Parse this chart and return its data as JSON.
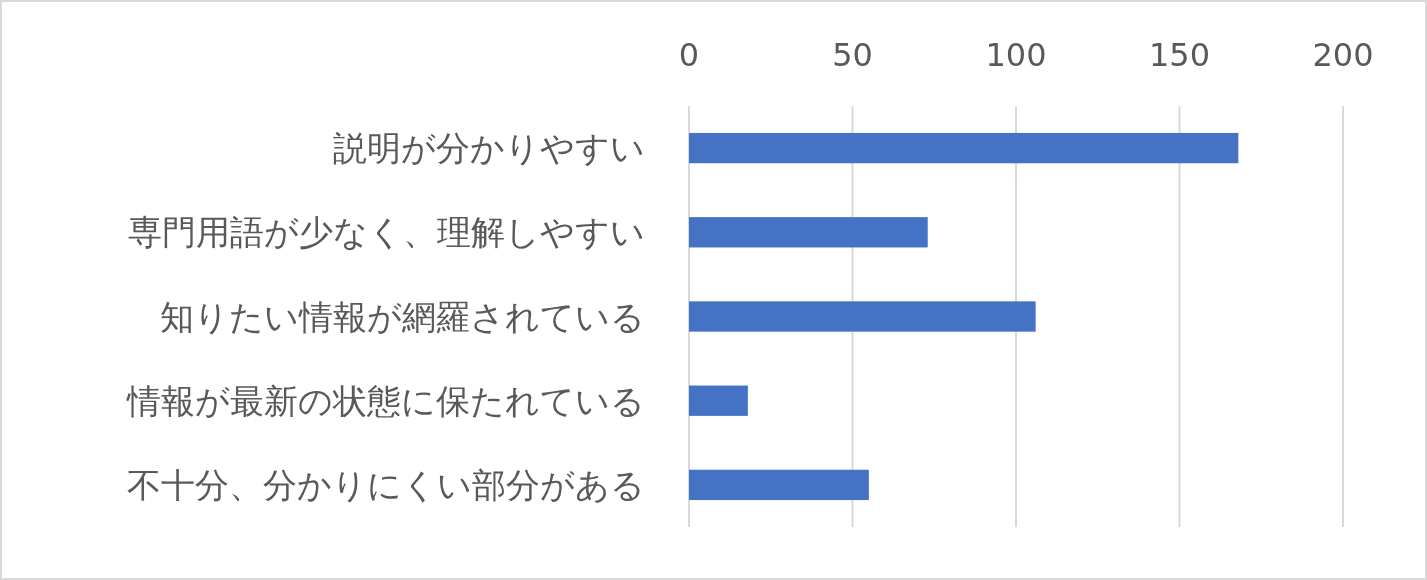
{
  "chart_data": {
    "type": "bar",
    "orientation": "horizontal",
    "categories": [
      "説明が分かりやすい",
      "専門用語が少なく、理解しやすい",
      "知りたい情報が網羅されている",
      "情報が最新の状態に保たれている",
      "不十分、分かりにくい部分がある"
    ],
    "values": [
      168,
      73,
      106,
      18,
      55
    ],
    "color": "#4472c4",
    "xlim": [
      0,
      200
    ],
    "xticks": [
      0,
      50,
      100,
      150,
      200
    ],
    "grid": "x"
  }
}
